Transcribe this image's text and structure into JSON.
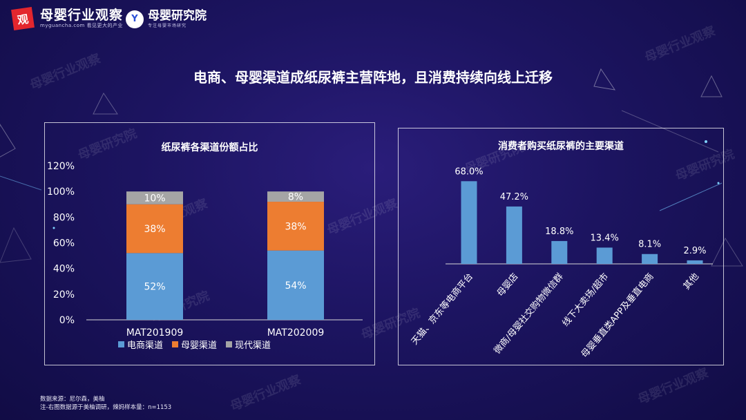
{
  "brand": {
    "logo_char": "观",
    "name": "母婴行业观察",
    "url": "myguancha.com",
    "slogan": "看见更大的产业",
    "logo2_char": "Y",
    "name2": "母婴研究院",
    "slogan2": "专注母婴市场研究"
  },
  "title": "电商、母婴渠道成纸尿裤主营阵地，且消费持续向线上迁移",
  "left_panel": {
    "title": "纸尿裤各渠道份额占比"
  },
  "right_panel": {
    "title": "消费者购买纸尿裤的主要渠道"
  },
  "footnotes": {
    "line1": "数据来源：尼尔森，美柚",
    "line2": "注-右图数据源于美柚调研，辣妈样本量：n=1153"
  },
  "watermarks": [
    "母婴行业观察",
    "母婴研究院"
  ],
  "colors": {
    "ecommerce": "#5b9bd5",
    "maternal": "#ed7d31",
    "modern": "#a5a5a5",
    "bar": "#5b9bd5"
  },
  "chart_data": [
    {
      "type": "bar",
      "stacked": true,
      "title": "纸尿裤各渠道份额占比",
      "categories": [
        "MAT201909",
        "MAT202009"
      ],
      "series": [
        {
          "name": "电商渠道",
          "values": [
            52,
            54
          ],
          "labels": [
            "52%",
            "54%"
          ]
        },
        {
          "name": "母婴渠道",
          "values": [
            38,
            38
          ],
          "labels": [
            "38%",
            "38%"
          ]
        },
        {
          "name": "现代渠道",
          "values": [
            10,
            8
          ],
          "labels": [
            "10%",
            "8%"
          ]
        }
      ],
      "ylim": [
        0,
        120
      ],
      "yticks": [
        "0%",
        "20%",
        "40%",
        "60%",
        "80%",
        "100%",
        "120%"
      ],
      "legend": "bottom",
      "grid": false
    },
    {
      "type": "bar",
      "title": "消费者购买纸尿裤的主要渠道",
      "categories": [
        "天猫、京东等电商平台",
        "母婴店",
        "微商/母婴社交购物微信群",
        "线下大卖场/超市",
        "母婴垂直类APP及垂直电商",
        "其他"
      ],
      "values": [
        68.0,
        47.2,
        18.8,
        13.4,
        8.1,
        2.9
      ],
      "labels": [
        "68.0%",
        "47.2%",
        "18.8%",
        "13.4%",
        "8.1%",
        "2.9%"
      ],
      "ylim": [
        0,
        75
      ],
      "grid": false
    }
  ]
}
